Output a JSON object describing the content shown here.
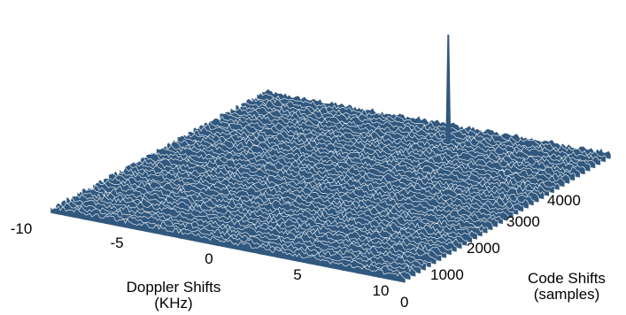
{
  "chart_data": {
    "type": "surface-3d",
    "description_of_peak": "single correlation peak",
    "x_axis": {
      "label_line1": "Doppler Shifts",
      "label_line2": "(KHz)",
      "ticks": [
        "-10",
        "-5",
        "0",
        "5",
        "10"
      ],
      "tick_values": [
        -10,
        -5,
        0,
        5,
        10
      ],
      "range": [
        -10,
        10
      ]
    },
    "y_axis": {
      "label_line1": "Code Shifts",
      "label_line2": "(samples)",
      "ticks": [
        "0",
        "1000",
        "2000",
        "3000",
        "4000"
      ],
      "tick_values": [
        0,
        1000,
        2000,
        3000,
        4000
      ],
      "range": [
        0,
        4500
      ]
    },
    "peak": {
      "doppler_khz": 2.0,
      "code_shift_samples": 4000,
      "relative_height": 1.0
    },
    "noise_floor_relative": 0.2,
    "surface_color": "#31587e"
  }
}
